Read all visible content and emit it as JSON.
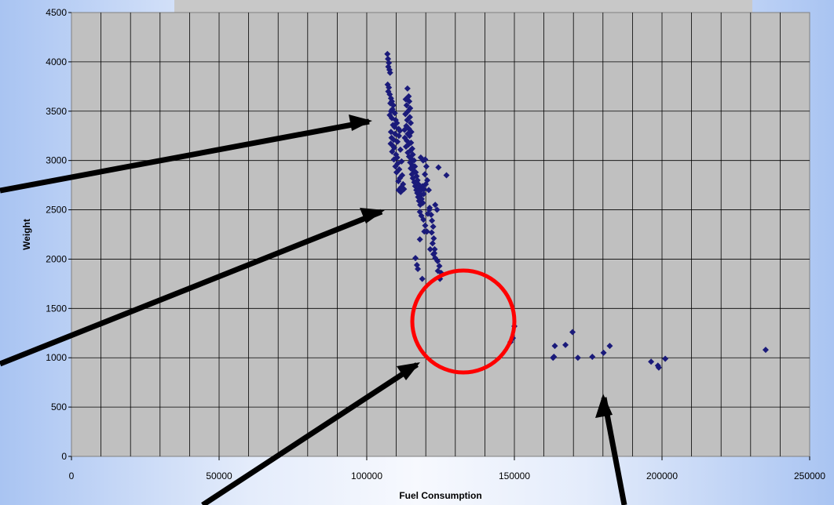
{
  "colors": {
    "plot_background": "#c0c0c0",
    "grid": "#000000",
    "points": "#1a1a7a",
    "highlight_circle": "#ff0000",
    "arrows": "#000000"
  },
  "chart_data": {
    "type": "scatter",
    "xlabel": "Fuel Consumption",
    "ylabel": "Weight",
    "xlim": [
      0,
      250000
    ],
    "ylim": [
      0,
      4500
    ],
    "x_ticks": [
      0,
      50000,
      100000,
      150000,
      200000,
      250000
    ],
    "y_ticks": [
      0,
      500,
      1000,
      1500,
      2000,
      2500,
      3000,
      3500,
      4000,
      4500
    ],
    "x_minor_grid_step": 10000,
    "grid": true,
    "series": [
      {
        "points": [
          [
            107000,
            4080
          ],
          [
            107200,
            4030
          ],
          [
            107500,
            3990
          ],
          [
            107300,
            3950
          ],
          [
            107700,
            3920
          ],
          [
            107900,
            3890
          ],
          [
            107100,
            3770
          ],
          [
            107500,
            3740
          ],
          [
            107300,
            3700
          ],
          [
            107800,
            3670
          ],
          [
            108200,
            3630
          ],
          [
            108500,
            3600
          ],
          [
            108000,
            3580
          ],
          [
            109000,
            3560
          ],
          [
            108700,
            3520
          ],
          [
            108200,
            3500
          ],
          [
            109500,
            3480
          ],
          [
            107800,
            3460
          ],
          [
            108500,
            3430
          ],
          [
            109800,
            3410
          ],
          [
            110200,
            3380
          ],
          [
            108900,
            3360
          ],
          [
            109400,
            3340
          ],
          [
            110800,
            3320
          ],
          [
            111200,
            3300
          ],
          [
            108200,
            3290
          ],
          [
            109600,
            3270
          ],
          [
            110900,
            3250
          ],
          [
            108400,
            3230
          ],
          [
            109100,
            3210
          ],
          [
            110400,
            3190
          ],
          [
            108100,
            3170
          ],
          [
            108800,
            3150
          ],
          [
            109300,
            3130
          ],
          [
            111400,
            3110
          ],
          [
            108600,
            3090
          ],
          [
            109900,
            3060
          ],
          [
            110300,
            3030
          ],
          [
            109200,
            3010
          ],
          [
            111800,
            2990
          ],
          [
            110500,
            2970
          ],
          [
            109700,
            2940
          ],
          [
            111000,
            2910
          ],
          [
            110100,
            2880
          ],
          [
            112000,
            2850
          ],
          [
            111200,
            2820
          ],
          [
            110700,
            2790
          ],
          [
            112300,
            2760
          ],
          [
            111700,
            2730
          ],
          [
            110800,
            2700
          ],
          [
            111500,
            2680
          ],
          [
            112600,
            2710
          ],
          [
            113800,
            3730
          ],
          [
            114200,
            3650
          ],
          [
            113200,
            3620
          ],
          [
            114400,
            3600
          ],
          [
            113500,
            3560
          ],
          [
            114700,
            3530
          ],
          [
            114000,
            3500
          ],
          [
            113100,
            3470
          ],
          [
            114600,
            3440
          ],
          [
            113700,
            3410
          ],
          [
            114900,
            3380
          ],
          [
            113400,
            3350
          ],
          [
            114300,
            3320
          ],
          [
            112800,
            3310
          ],
          [
            115100,
            3290
          ],
          [
            113900,
            3270
          ],
          [
            114500,
            3250
          ],
          [
            112900,
            3230
          ],
          [
            113600,
            3200
          ],
          [
            115000,
            3180
          ],
          [
            114100,
            3160
          ],
          [
            113300,
            3140
          ],
          [
            115400,
            3120
          ],
          [
            114800,
            3100
          ],
          [
            113900,
            3080
          ],
          [
            115600,
            3060
          ],
          [
            114300,
            3040
          ],
          [
            115200,
            3010
          ],
          [
            116000,
            3000
          ],
          [
            114700,
            2980
          ],
          [
            115500,
            2950
          ],
          [
            116300,
            2940
          ],
          [
            114900,
            2920
          ],
          [
            115800,
            2900
          ],
          [
            116600,
            2880
          ],
          [
            115300,
            2860
          ],
          [
            116900,
            2840
          ],
          [
            115600,
            2820
          ],
          [
            117200,
            2800
          ],
          [
            116100,
            2780
          ],
          [
            117500,
            2760
          ],
          [
            116400,
            2740
          ],
          [
            117800,
            2720
          ],
          [
            116800,
            2700
          ],
          [
            118100,
            2690
          ],
          [
            117100,
            2670
          ],
          [
            118400,
            2650
          ],
          [
            117400,
            2630
          ],
          [
            118600,
            2610
          ],
          [
            117700,
            2590
          ],
          [
            119000,
            2570
          ],
          [
            118100,
            2550
          ],
          [
            118900,
            2740
          ],
          [
            119400,
            2710
          ],
          [
            118300,
            3030
          ],
          [
            119100,
            3000
          ],
          [
            119800,
            3010
          ],
          [
            120200,
            2940
          ],
          [
            119700,
            2860
          ],
          [
            120000,
            2760
          ],
          [
            119300,
            2660
          ],
          [
            120500,
            2800
          ],
          [
            121000,
            2700
          ],
          [
            118000,
            2480
          ],
          [
            118500,
            2440
          ],
          [
            119200,
            2400
          ],
          [
            119800,
            2340
          ],
          [
            120400,
            2280
          ],
          [
            121200,
            2500
          ],
          [
            121800,
            2450
          ],
          [
            122100,
            2390
          ],
          [
            122500,
            2330
          ],
          [
            122000,
            2270
          ],
          [
            122700,
            2210
          ],
          [
            122300,
            2160
          ],
          [
            121500,
            2100
          ],
          [
            122900,
            2060
          ],
          [
            123200,
            2010
          ],
          [
            124000,
            1980
          ],
          [
            124600,
            1930
          ],
          [
            124100,
            1880
          ],
          [
            125200,
            1860
          ],
          [
            124800,
            1800
          ],
          [
            123000,
            2100
          ],
          [
            122600,
            2050
          ],
          [
            118800,
            1800
          ],
          [
            116500,
            2010
          ],
          [
            117300,
            1900
          ],
          [
            117000,
            1940
          ],
          [
            118000,
            2200
          ],
          [
            119500,
            2280
          ],
          [
            120700,
            2460
          ],
          [
            121300,
            2520
          ],
          [
            123200,
            2550
          ],
          [
            123800,
            2500
          ],
          [
            124300,
            2930
          ],
          [
            127000,
            2850
          ],
          [
            150000,
            1320
          ],
          [
            149500,
            1200
          ],
          [
            148700,
            1160
          ],
          [
            163100,
            1000
          ],
          [
            163400,
            1010
          ],
          [
            163700,
            1120
          ],
          [
            167300,
            1130
          ],
          [
            169700,
            1260
          ],
          [
            171500,
            1000
          ],
          [
            176400,
            1010
          ],
          [
            180200,
            1050
          ],
          [
            182300,
            1120
          ],
          [
            196300,
            960
          ],
          [
            198600,
            920
          ],
          [
            198900,
            900
          ],
          [
            201100,
            990
          ],
          [
            235100,
            1080
          ]
        ]
      }
    ]
  }
}
